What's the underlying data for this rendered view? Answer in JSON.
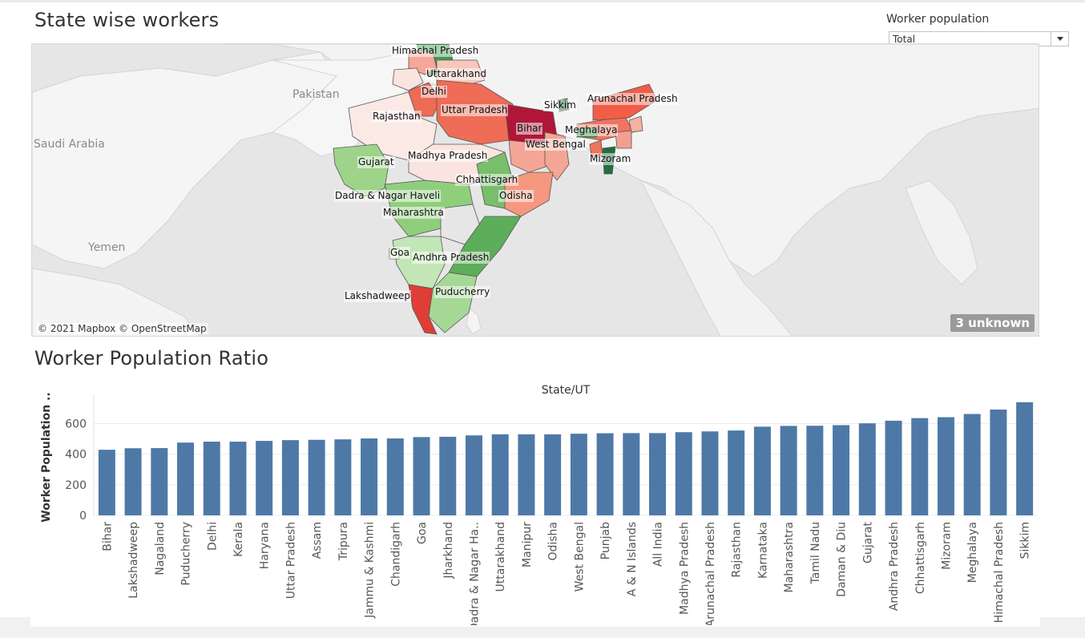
{
  "dashboard": {
    "map_title": "State wise workers",
    "bar_title": "Worker Population Ratio"
  },
  "filter": {
    "label": "Worker population",
    "value": "Total"
  },
  "map": {
    "attribution": "© 2021 Mapbox © OpenStreetMap",
    "unknown_badge": "3 unknown",
    "country_labels": [
      "Pakistan",
      "Saudi Arabia",
      "Yemen"
    ],
    "state_labels": [
      "Himachal Pradesh",
      "Uttarakhand",
      "Delhi",
      "Arunachal Pradesh",
      "Sikkim",
      "Uttar Pradesh",
      "Rajasthan",
      "Bihar",
      "Meghalaya",
      "West Bengal",
      "Madhya Pradesh",
      "Mizoram",
      "Gujarat",
      "Chhattisgarh",
      "Odisha",
      "Dadra & Nagar Haveli",
      "Maharashtra",
      "Goa",
      "Andhra Pradesh",
      "Puducherry",
      "Lakshadweep"
    ]
  },
  "chart_data": {
    "type": "bar",
    "title": "Worker Population Ratio",
    "xlabel": "State/UT",
    "ylabel": "Worker Population ..",
    "ylim": [
      0,
      760
    ],
    "yticks": [
      0,
      200,
      400,
      600
    ],
    "grid": true,
    "bar_color": "#4e79a7",
    "categories": [
      "Bihar",
      "Lakshadweep",
      "Nagaland",
      "Puducherry",
      "Delhi",
      "Kerala",
      "Haryana",
      "Uttar Pradesh",
      "Assam",
      "Tripura",
      "Jammu & Kashmi",
      "Chandigarh",
      "Goa",
      "Jharkhand",
      "Dadra & Nagar Ha..",
      "Uttarakhand",
      "Manipur",
      "Odisha",
      "West Bengal",
      "Punjab",
      "A & N Islands",
      "All India",
      "Madhya Pradesh",
      "Arunachal Pradesh",
      "Rajasthan",
      "Karnataka",
      "Maharashtra",
      "Tamil Nadu",
      "Daman & Diu",
      "Gujarat",
      "Andhra Pradesh",
      "Chhattisgarh",
      "Mizoram",
      "Meghalaya",
      "Himachal Pradesh",
      "Sikkim"
    ],
    "values": [
      429,
      439,
      440,
      476,
      482,
      482,
      487,
      492,
      494,
      497,
      503,
      503,
      512,
      514,
      523,
      530,
      530,
      530,
      534,
      537,
      538,
      538,
      544,
      549,
      555,
      580,
      585,
      586,
      590,
      602,
      619,
      636,
      642,
      663,
      692,
      740
    ]
  }
}
